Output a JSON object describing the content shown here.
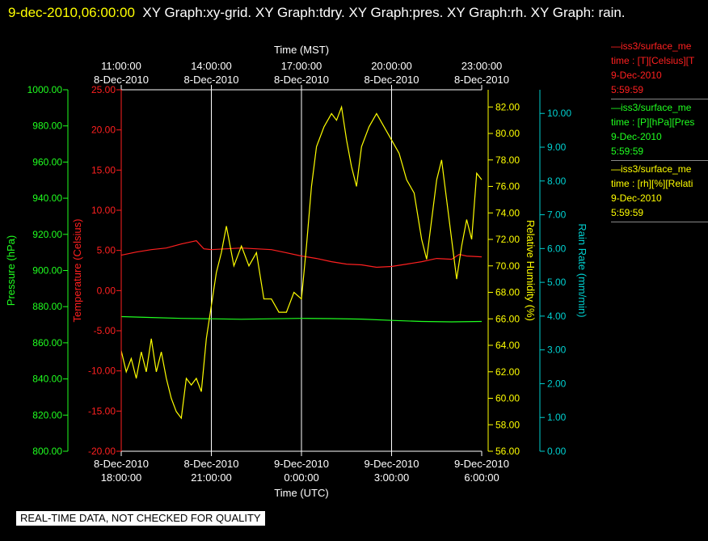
{
  "header": {
    "timestamp": "9-dec-2010,06:00:00",
    "graphs": "XY Graph:xy-grid.  XY Graph:tdry.  XY Graph:pres.  XY Graph:rh.  XY Graph: rain."
  },
  "notice": "REAL-TIME DATA, NOT CHECKED FOR QUALITY",
  "legend": [
    {
      "line": "—iss3/surface_me",
      "units": "time : [T][Celsius][T",
      "date": "9-Dec-2010",
      "time": "5:59:59",
      "color": "#ff2020"
    },
    {
      "line": "—iss3/surface_me",
      "units": "time : [P][hPa][Pres",
      "date": "9-Dec-2010",
      "time": "5:59:59",
      "color": "#20ff20"
    },
    {
      "line": "—iss3/surface_me",
      "units": "time : [rh][%][Relati",
      "date": "9-Dec-2010",
      "time": "5:59:59",
      "color": "#ffff00"
    }
  ],
  "chart_data": {
    "type": "line",
    "x_top": {
      "label": "Time (MST)",
      "ticks": [
        {
          "x": "2010-12-08T18:00:00Z",
          "time": "11:00:00",
          "date": "8-Dec-2010"
        },
        {
          "x": "2010-12-08T21:00:00Z",
          "time": "14:00:00",
          "date": "8-Dec-2010"
        },
        {
          "x": "2010-12-09T00:00:00Z",
          "time": "17:00:00",
          "date": "8-Dec-2010"
        },
        {
          "x": "2010-12-09T03:00:00Z",
          "time": "20:00:00",
          "date": "8-Dec-2010"
        },
        {
          "x": "2010-12-09T06:00:00Z",
          "time": "23:00:00",
          "date": "8-Dec-2010"
        }
      ]
    },
    "x_bottom": {
      "label": "Time (UTC)",
      "range": [
        "2010-12-08T18:00:00Z",
        "2010-12-09T06:00:00Z"
      ],
      "ticks": [
        {
          "x": "2010-12-08T18:00:00Z",
          "date": "8-Dec-2010",
          "time": "18:00:00"
        },
        {
          "x": "2010-12-08T21:00:00Z",
          "date": "8-Dec-2010",
          "time": "21:00:00"
        },
        {
          "x": "2010-12-09T00:00:00Z",
          "date": "9-Dec-2010",
          "time": "0:00:00"
        },
        {
          "x": "2010-12-09T03:00:00Z",
          "date": "9-Dec-2010",
          "time": "3:00:00"
        },
        {
          "x": "2010-12-09T06:00:00Z",
          "date": "9-Dec-2010",
          "time": "6:00:00"
        }
      ]
    },
    "grid": true,
    "axes": {
      "pressure": {
        "label": "Pressure (hPa)",
        "range": [
          800,
          1000
        ],
        "ticks": [
          "800.00",
          "820.00",
          "840.00",
          "860.00",
          "880.00",
          "900.00",
          "920.00",
          "940.00",
          "960.00",
          "980.00",
          "1000.00"
        ],
        "color": "#20ff20"
      },
      "temperature": {
        "label": "Temperature (Celsius)",
        "range": [
          -20,
          25
        ],
        "ticks": [
          "-20.00",
          "-15.00",
          "-10.00",
          "-5.00",
          "0.00",
          "5.00",
          "10.00",
          "15.00",
          "20.00",
          "25.00"
        ],
        "color": "#ff2020"
      },
      "rh": {
        "label": "Relative Humidity (%)",
        "range": [
          56,
          83.3
        ],
        "ticks": [
          "56.00",
          "58.00",
          "60.00",
          "62.00",
          "64.00",
          "66.00",
          "68.00",
          "70.00",
          "72.00",
          "74.00",
          "76.00",
          "78.00",
          "80.00",
          "82.00"
        ],
        "color": "#ffff00"
      },
      "rain": {
        "label": "Rain Rate (mm/min)",
        "range": [
          0,
          10.7
        ],
        "ticks": [
          "0.00",
          "1.00",
          "2.00",
          "3.00",
          "4.00",
          "5.00",
          "6.00",
          "7.00",
          "8.00",
          "9.00",
          "10.00"
        ],
        "color": "#00d0d0"
      }
    },
    "series": [
      {
        "key": "temperature",
        "color": "#ff2020",
        "points": [
          [
            "2010-12-08T18:00:00Z",
            4.4
          ],
          [
            "2010-12-08T18:30:00Z",
            4.8
          ],
          [
            "2010-12-08T19:00:00Z",
            5.1
          ],
          [
            "2010-12-08T19:30:00Z",
            5.3
          ],
          [
            "2010-12-08T20:00:00Z",
            5.8
          ],
          [
            "2010-12-08T20:30:00Z",
            6.2
          ],
          [
            "2010-12-08T20:45:00Z",
            5.2
          ],
          [
            "2010-12-08T21:00:00Z",
            5.1
          ],
          [
            "2010-12-08T21:30:00Z",
            5.2
          ],
          [
            "2010-12-08T22:00:00Z",
            5.3
          ],
          [
            "2010-12-08T22:30:00Z",
            5.2
          ],
          [
            "2010-12-08T23:00:00Z",
            5.1
          ],
          [
            "2010-12-08T23:30:00Z",
            4.7
          ],
          [
            "2010-12-09T00:00:00Z",
            4.3
          ],
          [
            "2010-12-09T00:30:00Z",
            4.0
          ],
          [
            "2010-12-09T01:00:00Z",
            3.6
          ],
          [
            "2010-12-09T01:30:00Z",
            3.3
          ],
          [
            "2010-12-09T02:00:00Z",
            3.2
          ],
          [
            "2010-12-09T02:30:00Z",
            2.9
          ],
          [
            "2010-12-09T03:00:00Z",
            3.0
          ],
          [
            "2010-12-09T03:30:00Z",
            3.3
          ],
          [
            "2010-12-09T04:00:00Z",
            3.6
          ],
          [
            "2010-12-09T04:30:00Z",
            4.0
          ],
          [
            "2010-12-09T05:00:00Z",
            3.9
          ],
          [
            "2010-12-09T05:15:00Z",
            4.5
          ],
          [
            "2010-12-09T05:30:00Z",
            4.3
          ],
          [
            "2010-12-09T06:00:00Z",
            4.2
          ]
        ]
      },
      {
        "key": "pressure",
        "color": "#20ff20",
        "points": [
          [
            "2010-12-08T18:00:00Z",
            874.5
          ],
          [
            "2010-12-08T19:00:00Z",
            874.0
          ],
          [
            "2010-12-08T20:00:00Z",
            873.5
          ],
          [
            "2010-12-08T21:00:00Z",
            873.3
          ],
          [
            "2010-12-08T22:00:00Z",
            873.0
          ],
          [
            "2010-12-08T23:00:00Z",
            873.3
          ],
          [
            "2010-12-09T00:00:00Z",
            873.5
          ],
          [
            "2010-12-09T01:00:00Z",
            873.4
          ],
          [
            "2010-12-09T02:00:00Z",
            873.1
          ],
          [
            "2010-12-09T03:00:00Z",
            872.4
          ],
          [
            "2010-12-09T04:00:00Z",
            871.8
          ],
          [
            "2010-12-09T05:00:00Z",
            871.6
          ],
          [
            "2010-12-09T06:00:00Z",
            871.8
          ]
        ]
      },
      {
        "key": "rh",
        "color": "#ffff00",
        "points": [
          [
            "2010-12-08T18:00:00Z",
            63.6
          ],
          [
            "2010-12-08T18:10:00Z",
            62.0
          ],
          [
            "2010-12-08T18:20:00Z",
            63.0
          ],
          [
            "2010-12-08T18:30:00Z",
            61.5
          ],
          [
            "2010-12-08T18:40:00Z",
            63.5
          ],
          [
            "2010-12-08T18:50:00Z",
            62.0
          ],
          [
            "2010-12-08T19:00:00Z",
            64.5
          ],
          [
            "2010-12-08T19:10:00Z",
            62.0
          ],
          [
            "2010-12-08T19:20:00Z",
            63.5
          ],
          [
            "2010-12-08T19:30:00Z",
            61.5
          ],
          [
            "2010-12-08T19:40:00Z",
            60.0
          ],
          [
            "2010-12-08T19:50:00Z",
            59.0
          ],
          [
            "2010-12-08T20:00:00Z",
            58.5
          ],
          [
            "2010-12-08T20:10:00Z",
            61.5
          ],
          [
            "2010-12-08T20:20:00Z",
            61.0
          ],
          [
            "2010-12-08T20:30:00Z",
            61.5
          ],
          [
            "2010-12-08T20:40:00Z",
            60.5
          ],
          [
            "2010-12-08T20:50:00Z",
            64.5
          ],
          [
            "2010-12-08T21:00:00Z",
            67.0
          ],
          [
            "2010-12-08T21:10:00Z",
            69.5
          ],
          [
            "2010-12-08T21:20:00Z",
            71.0
          ],
          [
            "2010-12-08T21:30:00Z",
            73.0
          ],
          [
            "2010-12-08T21:45:00Z",
            70.0
          ],
          [
            "2010-12-08T22:00:00Z",
            71.5
          ],
          [
            "2010-12-08T22:15:00Z",
            70.0
          ],
          [
            "2010-12-08T22:30:00Z",
            71.0
          ],
          [
            "2010-12-08T22:45:00Z",
            67.5
          ],
          [
            "2010-12-08T23:00:00Z",
            67.5
          ],
          [
            "2010-12-08T23:15:00Z",
            66.5
          ],
          [
            "2010-12-08T23:30:00Z",
            66.5
          ],
          [
            "2010-12-08T23:45:00Z",
            68.0
          ],
          [
            "2010-12-09T00:00:00Z",
            67.5
          ],
          [
            "2010-12-09T00:10:00Z",
            71.5
          ],
          [
            "2010-12-09T00:20:00Z",
            76.0
          ],
          [
            "2010-12-09T00:30:00Z",
            79.0
          ],
          [
            "2010-12-09T00:45:00Z",
            80.5
          ],
          [
            "2010-12-09T01:00:00Z",
            81.5
          ],
          [
            "2010-12-09T01:10:00Z",
            81.0
          ],
          [
            "2010-12-09T01:20:00Z",
            82.0
          ],
          [
            "2010-12-09T01:30:00Z",
            79.5
          ],
          [
            "2010-12-09T01:40:00Z",
            77.5
          ],
          [
            "2010-12-09T01:50:00Z",
            76.0
          ],
          [
            "2010-12-09T02:00:00Z",
            79.0
          ],
          [
            "2010-12-09T02:15:00Z",
            80.5
          ],
          [
            "2010-12-09T02:30:00Z",
            81.5
          ],
          [
            "2010-12-09T02:45:00Z",
            80.5
          ],
          [
            "2010-12-09T03:00:00Z",
            79.5
          ],
          [
            "2010-12-09T03:15:00Z",
            78.5
          ],
          [
            "2010-12-09T03:30:00Z",
            76.5
          ],
          [
            "2010-12-09T03:45:00Z",
            75.5
          ],
          [
            "2010-12-09T04:00:00Z",
            72.0
          ],
          [
            "2010-12-09T04:10:00Z",
            70.5
          ],
          [
            "2010-12-09T04:20:00Z",
            73.5
          ],
          [
            "2010-12-09T04:30:00Z",
            76.5
          ],
          [
            "2010-12-09T04:40:00Z",
            78.0
          ],
          [
            "2010-12-09T04:50:00Z",
            75.0
          ],
          [
            "2010-12-09T05:00:00Z",
            72.0
          ],
          [
            "2010-12-09T05:10:00Z",
            69.0
          ],
          [
            "2010-12-09T05:20:00Z",
            71.5
          ],
          [
            "2010-12-09T05:30:00Z",
            73.5
          ],
          [
            "2010-12-09T05:40:00Z",
            72.0
          ],
          [
            "2010-12-09T05:50:00Z",
            77.0
          ],
          [
            "2010-12-09T06:00:00Z",
            76.5
          ]
        ]
      }
    ]
  }
}
